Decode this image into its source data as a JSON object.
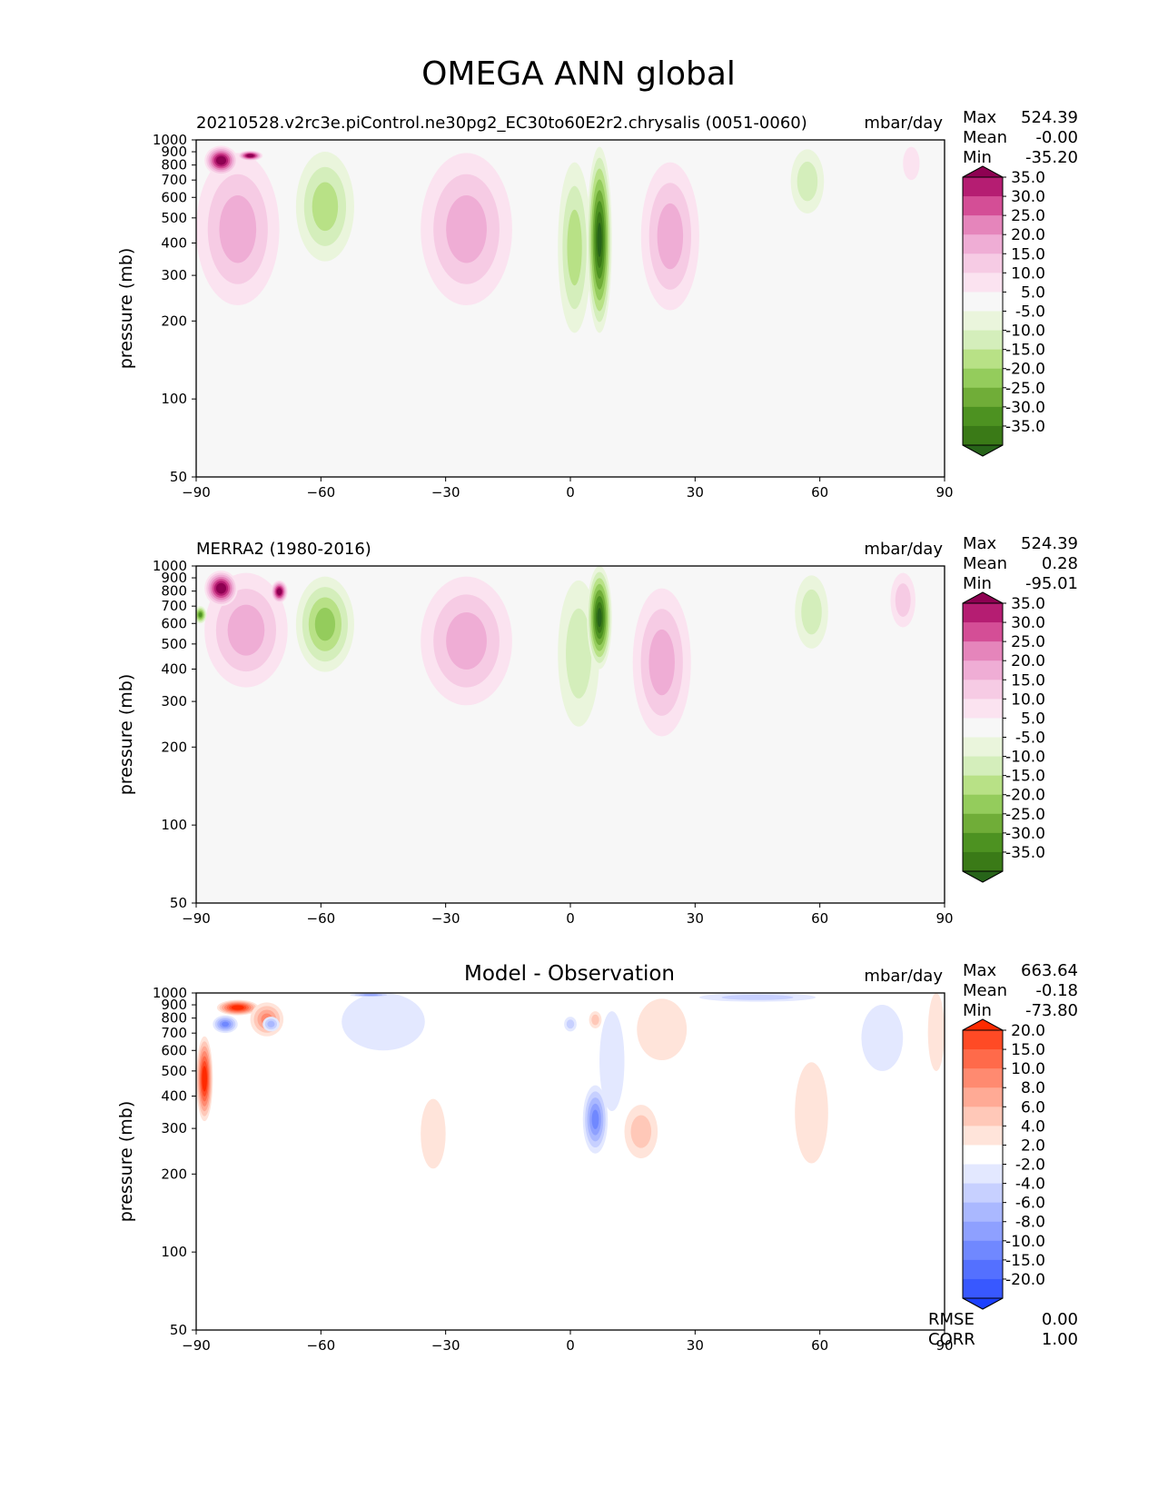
{
  "figure": {
    "title": "OMEGA ANN global"
  },
  "chart_data": [
    {
      "type": "heatmap",
      "title": "",
      "left_title": "20210528.v2rc3e.piControl.ne30pg2_EC30to60E2r2.chrysalis (0051-0060)",
      "units": "mbar/day",
      "xlabel": "",
      "ylabel": "pressure (mb)",
      "xlim": [
        -90,
        90
      ],
      "ylim": [
        1000,
        50
      ],
      "xticks": [
        -90,
        -60,
        -30,
        0,
        30,
        60,
        90
      ],
      "yticks": [
        50,
        100,
        200,
        300,
        400,
        500,
        600,
        700,
        800,
        900,
        1000
      ],
      "stats": {
        "labels": [
          "Max",
          "Mean",
          "Min"
        ],
        "values": [
          "524.39",
          "-0.00",
          "-35.20"
        ]
      },
      "colorbar": {
        "levels": [
          "35.0",
          "30.0",
          "25.0",
          "20.0",
          "15.0",
          "10.0",
          "5.0",
          "-5.0",
          "-10.0",
          "-15.0",
          "-20.0",
          "-25.0",
          "-30.0",
          "-35.0"
        ],
        "colors": [
          "#8e0152",
          "#b51d72",
          "#d44e96",
          "#e585bb",
          "#efadd5",
          "#f6cbe4",
          "#fbe3f0",
          "#f7f7f7",
          "#eaf5dc",
          "#d4eebb",
          "#b8e186",
          "#94cc5c",
          "#70ad38",
          "#4d9221",
          "#3a7a17",
          "#276419"
        ]
      },
      "features": [
        {
          "kind": "pos",
          "lon": -80,
          "lev": 560,
          "dlon": 10,
          "dlev": 330,
          "amp": 14
        },
        {
          "kind": "pos",
          "lon": -84,
          "lev": 840,
          "dlon": 4,
          "dlev": 110,
          "amp": 75
        },
        {
          "kind": "pos",
          "lon": -77,
          "lev": 870,
          "dlon": 3,
          "dlev": 40,
          "amp": 40
        },
        {
          "kind": "neg",
          "lon": -59,
          "lev": 620,
          "dlon": 7,
          "dlev": 280,
          "amp": -17
        },
        {
          "kind": "pos",
          "lon": -25,
          "lev": 560,
          "dlon": 11,
          "dlev": 330,
          "amp": 13
        },
        {
          "kind": "neg",
          "lon": 1,
          "lev": 500,
          "dlon": 4,
          "dlev": 320,
          "amp": -14
        },
        {
          "kind": "neg",
          "lon": 7,
          "lev": 560,
          "dlon": 3,
          "dlev": 380,
          "amp": -38
        },
        {
          "kind": "pos",
          "lon": 24,
          "lev": 520,
          "dlon": 7,
          "dlev": 300,
          "amp": 13
        },
        {
          "kind": "neg",
          "lon": 57,
          "lev": 720,
          "dlon": 4,
          "dlev": 200,
          "amp": -8
        },
        {
          "kind": "pos",
          "lon": 82,
          "lev": 820,
          "dlon": 2,
          "dlev": 120,
          "amp": 7
        }
      ]
    },
    {
      "type": "heatmap",
      "title": "",
      "left_title": "MERRA2 (1980-2016)",
      "units": "mbar/day",
      "xlabel": "",
      "ylabel": "pressure (mb)",
      "xlim": [
        -90,
        90
      ],
      "ylim": [
        1000,
        50
      ],
      "xticks": [
        -90,
        -60,
        -30,
        0,
        30,
        60,
        90
      ],
      "yticks": [
        50,
        100,
        200,
        300,
        400,
        500,
        600,
        700,
        800,
        900,
        1000
      ],
      "stats": {
        "labels": [
          "Max",
          "Mean",
          "Min"
        ],
        "values": [
          "524.39",
          "0.28",
          "-95.01"
        ]
      },
      "colorbar": {
        "levels": [
          "35.0",
          "30.0",
          "25.0",
          "20.0",
          "15.0",
          "10.0",
          "5.0",
          "-5.0",
          "-10.0",
          "-15.0",
          "-20.0",
          "-25.0",
          "-30.0",
          "-35.0"
        ],
        "colors": [
          "#8e0152",
          "#b51d72",
          "#d44e96",
          "#e585bb",
          "#efadd5",
          "#f6cbe4",
          "#fbe3f0",
          "#f7f7f7",
          "#eaf5dc",
          "#d4eebb",
          "#b8e186",
          "#94cc5c",
          "#70ad38",
          "#4d9221",
          "#3a7a17",
          "#276419"
        ]
      },
      "features": [
        {
          "kind": "pos",
          "lon": -78,
          "lev": 640,
          "dlon": 10,
          "dlev": 300,
          "amp": 14
        },
        {
          "kind": "pos",
          "lon": -84,
          "lev": 830,
          "dlon": 4,
          "dlev": 130,
          "amp": 80
        },
        {
          "kind": "pos",
          "lon": -70,
          "lev": 800,
          "dlon": 2,
          "dlev": 80,
          "amp": 45
        },
        {
          "kind": "neg",
          "lon": -89,
          "lev": 650,
          "dlon": 1.5,
          "dlev": 50,
          "amp": -30
        },
        {
          "kind": "neg",
          "lon": -59,
          "lev": 650,
          "dlon": 7,
          "dlev": 260,
          "amp": -18
        },
        {
          "kind": "pos",
          "lon": -25,
          "lev": 600,
          "dlon": 11,
          "dlev": 310,
          "amp": 13
        },
        {
          "kind": "neg",
          "lon": 2,
          "lev": 560,
          "dlon": 5,
          "dlev": 320,
          "amp": -12
        },
        {
          "kind": "neg",
          "lon": 7,
          "lev": 700,
          "dlon": 3,
          "dlev": 300,
          "amp": -38
        },
        {
          "kind": "pos",
          "lon": 22,
          "lev": 520,
          "dlon": 7,
          "dlev": 300,
          "amp": 13
        },
        {
          "kind": "neg",
          "lon": 58,
          "lev": 700,
          "dlon": 4,
          "dlev": 220,
          "amp": -9
        },
        {
          "kind": "pos",
          "lon": 80,
          "lev": 760,
          "dlon": 3,
          "dlev": 180,
          "amp": 8
        }
      ]
    },
    {
      "type": "heatmap",
      "title": "Model - Observation",
      "left_title": "",
      "units": "mbar/day",
      "xlabel": "",
      "ylabel": "pressure (mb)",
      "xlim": [
        -90,
        90
      ],
      "ylim": [
        1000,
        50
      ],
      "xticks": [
        -90,
        -60,
        -30,
        0,
        30,
        60,
        90
      ],
      "yticks": [
        50,
        100,
        200,
        300,
        400,
        500,
        600,
        700,
        800,
        900,
        1000
      ],
      "stats": {
        "labels": [
          "Max",
          "Mean",
          "Min"
        ],
        "values": [
          "663.64",
          "-0.18",
          "-73.80"
        ]
      },
      "extra_stats": {
        "labels": [
          "RMSE",
          "CORR"
        ],
        "values": [
          "0.00",
          "1.00"
        ]
      },
      "colorbar": {
        "levels": [
          "20.0",
          "15.0",
          "10.0",
          "8.0",
          "6.0",
          "4.0",
          "2.0",
          "-2.0",
          "-4.0",
          "-6.0",
          "-8.0",
          "-10.0",
          "-15.0",
          "-20.0"
        ],
        "colors": [
          "#ff2a00",
          "#ff4a25",
          "#ff6a4a",
          "#ff8a70",
          "#ffaa95",
          "#ffc8b8",
          "#ffe4da",
          "#ffffff",
          "#e3e8ff",
          "#c7d0ff",
          "#aab8ff",
          "#8ea0ff",
          "#7088ff",
          "#5470ff",
          "#3858ff",
          "#1c40ff"
        ]
      },
      "features": [
        {
          "kind": "pos",
          "lon": -88,
          "lev": 500,
          "dlon": 2,
          "dlev": 180,
          "amp": 25
        },
        {
          "kind": "neg",
          "lon": -83,
          "lev": 760,
          "dlon": 3,
          "dlev": 60,
          "amp": -15
        },
        {
          "kind": "pos",
          "lon": -80,
          "lev": 880,
          "dlon": 5,
          "dlev": 60,
          "amp": 30
        },
        {
          "kind": "pos",
          "lon": -73,
          "lev": 800,
          "dlon": 4,
          "dlev": 120,
          "amp": 12
        },
        {
          "kind": "neg",
          "lon": -72,
          "lev": 760,
          "dlon": 2,
          "dlev": 50,
          "amp": -8
        },
        {
          "kind": "neg",
          "lon": -45,
          "lev": 800,
          "dlon": 10,
          "dlev": 200,
          "amp": -4
        },
        {
          "kind": "neg",
          "lon": -48,
          "lev": 990,
          "dlon": 5,
          "dlev": 25,
          "amp": -12
        },
        {
          "kind": "pos",
          "lon": -33,
          "lev": 300,
          "dlon": 3,
          "dlev": 90,
          "amp": 3
        },
        {
          "kind": "neg",
          "lon": 6,
          "lev": 340,
          "dlon": 3,
          "dlev": 100,
          "amp": -14
        },
        {
          "kind": "neg",
          "lon": 10,
          "lev": 600,
          "dlon": 3,
          "dlev": 250,
          "amp": -4
        },
        {
          "kind": "pos",
          "lon": 17,
          "lev": 300,
          "dlon": 4,
          "dlev": 70,
          "amp": 7
        },
        {
          "kind": "pos",
          "lon": 6,
          "lev": 790,
          "dlon": 1.5,
          "dlev": 60,
          "amp": 5
        },
        {
          "kind": "neg",
          "lon": 0,
          "lev": 760,
          "dlon": 1.5,
          "dlev": 50,
          "amp": -6
        },
        {
          "kind": "pos",
          "lon": 22,
          "lev": 750,
          "dlon": 6,
          "dlev": 200,
          "amp": 3
        },
        {
          "kind": "neg",
          "lon": 45,
          "lev": 970,
          "dlon": 14,
          "dlev": 45,
          "amp": -7
        },
        {
          "kind": "pos",
          "lon": 58,
          "lev": 380,
          "dlon": 4,
          "dlev": 160,
          "amp": 3
        },
        {
          "kind": "pos",
          "lon": 88,
          "lev": 750,
          "dlon": 2,
          "dlev": 250,
          "amp": 4
        },
        {
          "kind": "neg",
          "lon": 75,
          "lev": 700,
          "dlon": 5,
          "dlev": 200,
          "amp": -3
        }
      ]
    }
  ]
}
